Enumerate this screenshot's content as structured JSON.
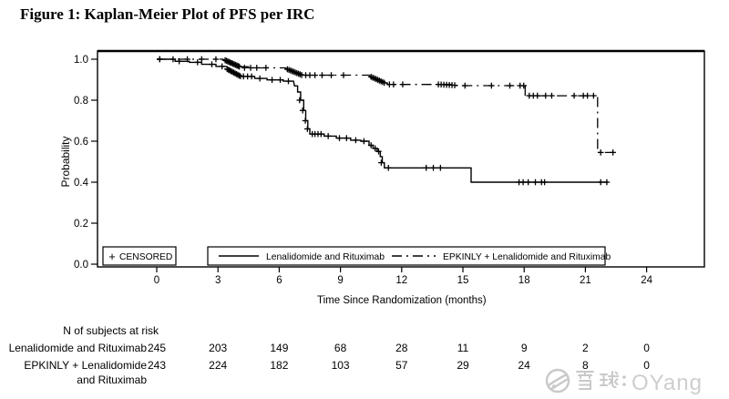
{
  "figure": {
    "title": "Figure 1: Kaplan-Meier Plot of PFS per IRC"
  },
  "watermark": {
    "text": "雪球：OYang",
    "latin": "OYang",
    "color": "#c9c9c9"
  },
  "chart_data": {
    "type": "line",
    "subtype": "kaplan-meier-step",
    "title": "Figure 1: Kaplan-Meier Plot of PFS per IRC",
    "xlabel": "Time Since Randomization (months)",
    "ylabel": "Probability",
    "xlim": [
      0,
      24
    ],
    "ylim": [
      0.0,
      1.0
    ],
    "x_ticks": [
      "0",
      "3",
      "6",
      "9",
      "12",
      "15",
      "18",
      "21",
      "24"
    ],
    "y_ticks": [
      "0.0",
      "0.2",
      "0.4",
      "0.6",
      "0.8",
      "1.0"
    ],
    "grid": false,
    "legend_position": "bottom-inside",
    "censored_marker": "+",
    "legend": {
      "censored_label": "CENSORED",
      "entries": [
        "Lenalidomide and Rituximab",
        "EPKINLY + Lenalidomide and Rituximab"
      ]
    },
    "series": [
      {
        "name": "Lenalidomide and Rituximab",
        "style": "solid",
        "color": "#000000",
        "steps": [
          [
            0,
            1.0
          ],
          [
            0.9,
            1.0
          ],
          [
            0.9,
            0.99
          ],
          [
            1.6,
            0.99
          ],
          [
            1.6,
            0.985
          ],
          [
            2.2,
            0.985
          ],
          [
            2.2,
            0.975
          ],
          [
            2.9,
            0.975
          ],
          [
            2.9,
            0.965
          ],
          [
            3.4,
            0.965
          ],
          [
            3.5,
            0.955
          ],
          [
            3.65,
            0.945
          ],
          [
            3.8,
            0.935
          ],
          [
            3.95,
            0.925
          ],
          [
            4.1,
            0.916
          ],
          [
            4.8,
            0.916
          ],
          [
            4.8,
            0.906
          ],
          [
            5.4,
            0.906
          ],
          [
            5.4,
            0.899
          ],
          [
            6.2,
            0.899
          ],
          [
            6.2,
            0.893
          ],
          [
            6.7,
            0.893
          ],
          [
            6.75,
            0.87
          ],
          [
            6.9,
            0.87
          ],
          [
            6.9,
            0.84
          ],
          [
            7.05,
            0.84
          ],
          [
            7.05,
            0.8
          ],
          [
            7.2,
            0.8
          ],
          [
            7.2,
            0.75
          ],
          [
            7.3,
            0.75
          ],
          [
            7.3,
            0.7
          ],
          [
            7.4,
            0.7
          ],
          [
            7.4,
            0.66
          ],
          [
            7.5,
            0.66
          ],
          [
            7.5,
            0.635
          ],
          [
            8.2,
            0.635
          ],
          [
            8.2,
            0.625
          ],
          [
            8.8,
            0.625
          ],
          [
            8.8,
            0.615
          ],
          [
            9.5,
            0.615
          ],
          [
            9.5,
            0.605
          ],
          [
            10.0,
            0.605
          ],
          [
            10.0,
            0.6
          ],
          [
            10.4,
            0.6
          ],
          [
            10.4,
            0.58
          ],
          [
            10.6,
            0.58
          ],
          [
            10.6,
            0.565
          ],
          [
            10.8,
            0.565
          ],
          [
            10.8,
            0.55
          ],
          [
            10.95,
            0.55
          ],
          [
            10.95,
            0.525
          ],
          [
            11.05,
            0.525
          ],
          [
            11.05,
            0.495
          ],
          [
            11.15,
            0.495
          ],
          [
            11.15,
            0.47
          ],
          [
            15.4,
            0.47
          ],
          [
            15.4,
            0.4
          ],
          [
            22.1,
            0.4
          ]
        ],
        "censors": [
          [
            0.15,
            1.0
          ],
          [
            1.1,
            0.99
          ],
          [
            2.0,
            0.985
          ],
          [
            2.7,
            0.975
          ],
          [
            3.2,
            0.965
          ],
          [
            4.25,
            0.916
          ],
          [
            4.45,
            0.916
          ],
          [
            4.65,
            0.916
          ],
          [
            5.05,
            0.906
          ],
          [
            5.65,
            0.899
          ],
          [
            6.05,
            0.899
          ],
          [
            6.45,
            0.893
          ],
          [
            7.0,
            0.8
          ],
          [
            7.15,
            0.75
          ],
          [
            7.28,
            0.7
          ],
          [
            7.38,
            0.66
          ],
          [
            7.62,
            0.635
          ],
          [
            7.75,
            0.635
          ],
          [
            7.9,
            0.635
          ],
          [
            8.05,
            0.635
          ],
          [
            8.4,
            0.625
          ],
          [
            8.95,
            0.615
          ],
          [
            9.3,
            0.615
          ],
          [
            9.75,
            0.605
          ],
          [
            10.15,
            0.6
          ],
          [
            10.5,
            0.58
          ],
          [
            10.7,
            0.565
          ],
          [
            10.87,
            0.55
          ],
          [
            11.0,
            0.495
          ],
          [
            11.35,
            0.47
          ],
          [
            13.2,
            0.47
          ],
          [
            13.55,
            0.47
          ],
          [
            13.9,
            0.47
          ],
          [
            17.75,
            0.4
          ],
          [
            17.95,
            0.4
          ],
          [
            18.2,
            0.4
          ],
          [
            18.55,
            0.4
          ],
          [
            18.85,
            0.4
          ],
          [
            19.0,
            0.4
          ],
          [
            21.75,
            0.4
          ],
          [
            22.05,
            0.4
          ]
        ],
        "censor_clusters": [
          {
            "m1": 3.45,
            "m2": 4.1,
            "p1": 0.952,
            "p2": 0.917,
            "n": 11
          }
        ]
      },
      {
        "name": "EPKINLY + Lenalidomide and Rituximab",
        "style": "dashdot",
        "color": "#000000",
        "steps": [
          [
            0,
            1.0
          ],
          [
            3.25,
            1.0
          ],
          [
            3.4,
            0.99
          ],
          [
            3.6,
            0.982
          ],
          [
            3.8,
            0.974
          ],
          [
            4.0,
            0.967
          ],
          [
            4.1,
            0.963
          ],
          [
            4.5,
            0.963
          ],
          [
            4.5,
            0.958
          ],
          [
            6.3,
            0.958
          ],
          [
            6.45,
            0.95
          ],
          [
            6.6,
            0.943
          ],
          [
            6.8,
            0.936
          ],
          [
            7.0,
            0.928
          ],
          [
            7.1,
            0.922
          ],
          [
            10.4,
            0.922
          ],
          [
            10.55,
            0.913
          ],
          [
            10.7,
            0.905
          ],
          [
            10.85,
            0.897
          ],
          [
            11.05,
            0.888
          ],
          [
            11.2,
            0.884
          ],
          [
            11.3,
            0.884
          ],
          [
            11.3,
            0.877
          ],
          [
            14.5,
            0.877
          ],
          [
            14.5,
            0.871
          ],
          [
            18.05,
            0.871
          ],
          [
            18.05,
            0.822
          ],
          [
            21.6,
            0.822
          ],
          [
            21.6,
            0.545
          ],
          [
            22.4,
            0.545
          ]
        ],
        "censors": [
          [
            0.15,
            1.0
          ],
          [
            0.8,
            1.0
          ],
          [
            1.5,
            1.0
          ],
          [
            2.2,
            1.0
          ],
          [
            2.9,
            1.0
          ],
          [
            4.3,
            0.958
          ],
          [
            4.6,
            0.958
          ],
          [
            4.9,
            0.958
          ],
          [
            5.35,
            0.958
          ],
          [
            7.3,
            0.922
          ],
          [
            7.5,
            0.922
          ],
          [
            7.75,
            0.922
          ],
          [
            8.1,
            0.922
          ],
          [
            8.55,
            0.922
          ],
          [
            9.15,
            0.922
          ],
          [
            11.4,
            0.877
          ],
          [
            11.6,
            0.877
          ],
          [
            12.05,
            0.877
          ],
          [
            15.1,
            0.871
          ],
          [
            16.4,
            0.871
          ],
          [
            17.3,
            0.871
          ],
          [
            17.8,
            0.871
          ],
          [
            17.98,
            0.871
          ],
          [
            18.25,
            0.822
          ],
          [
            18.45,
            0.822
          ],
          [
            18.65,
            0.822
          ],
          [
            19.05,
            0.822
          ],
          [
            19.35,
            0.822
          ],
          [
            20.45,
            0.822
          ],
          [
            20.9,
            0.822
          ],
          [
            21.1,
            0.822
          ],
          [
            21.4,
            0.822
          ],
          [
            21.75,
            0.545
          ],
          [
            22.35,
            0.545
          ]
        ],
        "censor_clusters": [
          {
            "m1": 3.35,
            "m2": 4.05,
            "p1": 0.995,
            "p2": 0.964,
            "n": 12
          },
          {
            "m1": 6.4,
            "m2": 7.1,
            "p1": 0.951,
            "p2": 0.923,
            "n": 10
          },
          {
            "m1": 10.5,
            "m2": 11.15,
            "p1": 0.914,
            "p2": 0.885,
            "n": 9
          },
          {
            "m1": 13.8,
            "m2": 14.6,
            "p1": 0.877,
            "p2": 0.873,
            "n": 7
          }
        ]
      }
    ],
    "at_risk": {
      "header": "N of subjects at risk",
      "months": [
        0,
        3,
        6,
        9,
        12,
        15,
        18,
        21,
        24
      ],
      "rows": [
        {
          "label_lines": [
            "Lenalidomide and Rituximab"
          ],
          "values": [
            "245",
            "203",
            "149",
            "68",
            "28",
            "11",
            "9",
            "2",
            "0"
          ]
        },
        {
          "label_lines": [
            "EPKINLY + Lenalidomide",
            "and Rituximab"
          ],
          "values": [
            "243",
            "224",
            "182",
            "103",
            "57",
            "29",
            "24",
            "8",
            "0"
          ]
        }
      ]
    }
  }
}
